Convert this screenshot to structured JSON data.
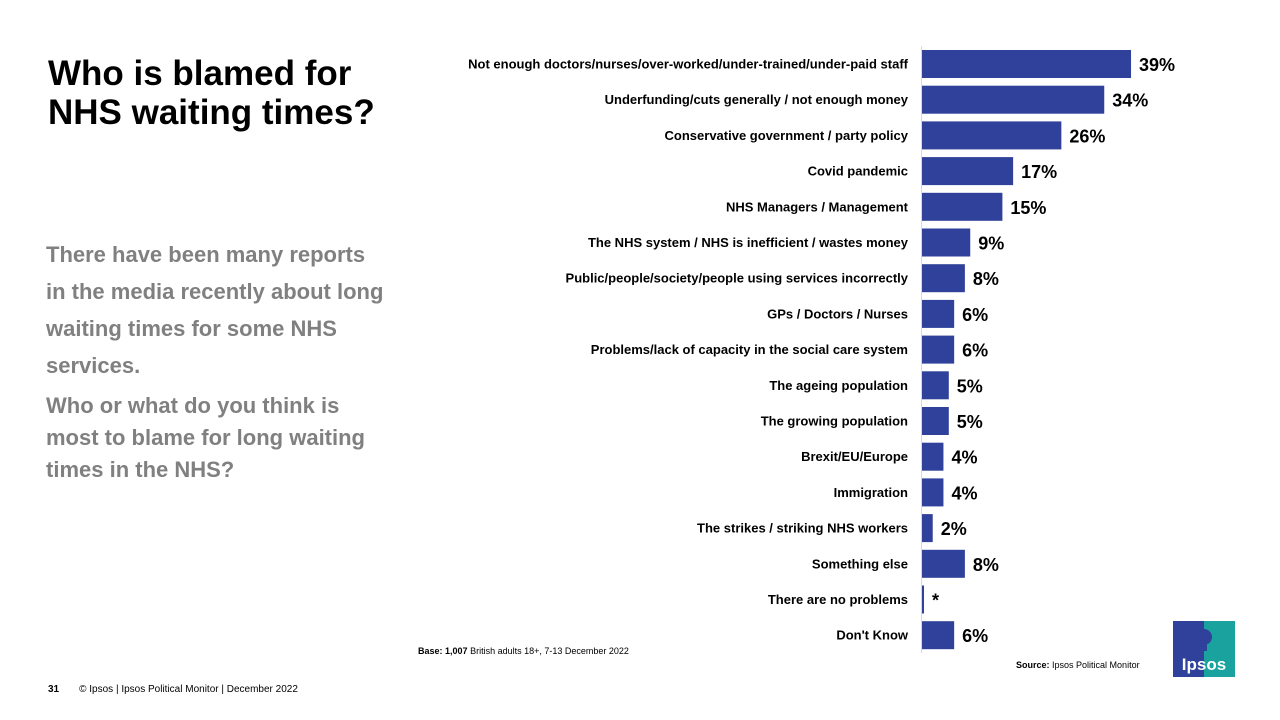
{
  "title": "Who is blamed for NHS waiting times?",
  "intro": "There have been many reports in the media recently about long waiting times for some NHS services.",
  "question": "Who or what do you think is most to blame for long waiting times in the NHS?",
  "base_label": "Base:",
  "base_value": "1,007",
  "base_text": "British adults 18+, 7-13 December 2022",
  "source_label": "Source:",
  "source_text": "Ipsos Political Monitor",
  "footer": {
    "page_number": "31",
    "text": "© Ipsos | Ipsos Political Monitor | December 2022"
  },
  "logo_text": "Ipsos",
  "colors": {
    "bar": "#2F419A",
    "logo_blue": "#2F419A",
    "logo_teal": "#1AA39E"
  },
  "chart_data": {
    "type": "bar",
    "orientation": "horizontal",
    "categories": [
      "Not enough doctors/nurses/over-worked/under-trained/under-paid staff",
      "Underfunding/cuts generally / not enough money",
      "Conservative government / party policy",
      "Covid pandemic",
      "NHS Managers / Management",
      "The NHS system / NHS is inefficient / wastes money",
      "Public/people/society/people using services incorrectly",
      "GPs / Doctors / Nurses",
      "Problems/lack of capacity in the social care system",
      "The ageing population",
      "The growing population",
      "Brexit/EU/Europe",
      "Immigration",
      "The strikes / striking NHS workers",
      "Something else",
      "There are no problems",
      "Don't Know"
    ],
    "values": [
      39,
      34,
      26,
      17,
      15,
      9,
      8,
      6,
      6,
      5,
      5,
      4,
      4,
      2,
      8,
      null,
      6
    ],
    "labels": [
      "39%",
      "34%",
      "26%",
      "17%",
      "15%",
      "9%",
      "8%",
      "6%",
      "6%",
      "5%",
      "5%",
      "4%",
      "4%",
      "2%",
      "8%",
      "*",
      "6%"
    ],
    "unit": "%",
    "grid": false
  }
}
